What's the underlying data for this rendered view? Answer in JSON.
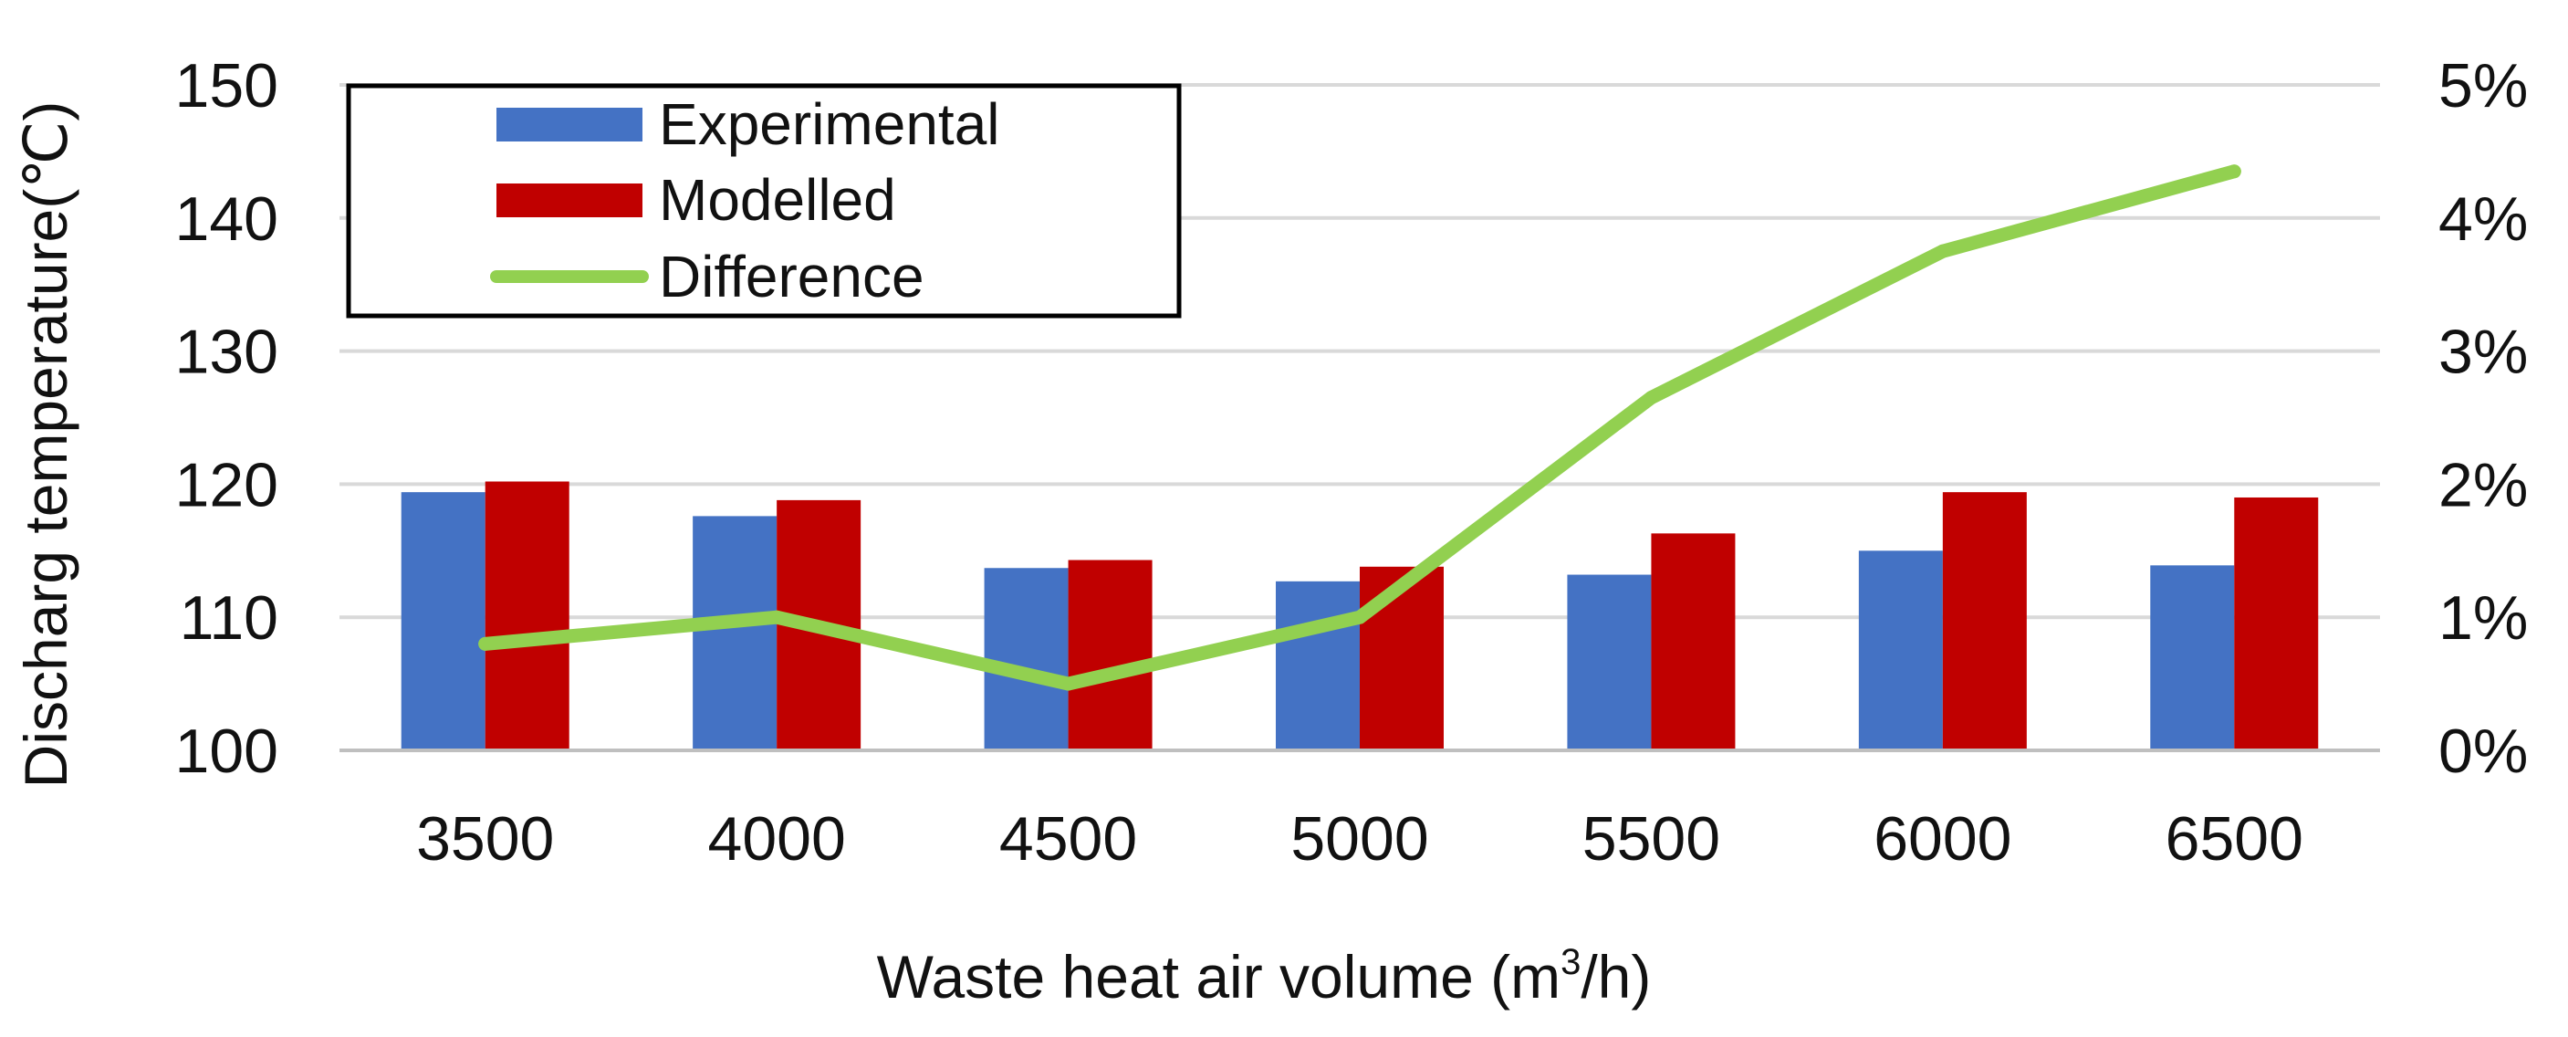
{
  "chart_data": {
    "type": "bar",
    "title": "",
    "xlabel": {
      "prefix": "Waste heat air volume (m",
      "superscript": "3",
      "suffix": "/h)"
    },
    "ylabel": "Discharg temperature(℃)",
    "y2label": "",
    "categories": [
      "3500",
      "4000",
      "4500",
      "5000",
      "5500",
      "6000",
      "6500"
    ],
    "ylim": [
      100,
      150
    ],
    "yticks": [
      100,
      110,
      120,
      130,
      140,
      150
    ],
    "y2lim": [
      0,
      0.05
    ],
    "y2ticks": [
      {
        "value": 0.0,
        "label": "0%"
      },
      {
        "value": 0.01,
        "label": "1%"
      },
      {
        "value": 0.02,
        "label": "2%"
      },
      {
        "value": 0.03,
        "label": "3%"
      },
      {
        "value": 0.04,
        "label": "4%"
      },
      {
        "value": 0.05,
        "label": "5%"
      }
    ],
    "grid": true,
    "legend_position": "top-left",
    "series": [
      {
        "name": "Experimental",
        "type": "bar",
        "axis": "left",
        "color": "#4472C4",
        "values": [
          119.4,
          117.6,
          113.7,
          112.7,
          113.2,
          115.0,
          113.9
        ]
      },
      {
        "name": "Modelled",
        "type": "bar",
        "axis": "left",
        "color": "#C00000",
        "values": [
          120.2,
          118.8,
          114.3,
          113.8,
          116.3,
          119.4,
          119.0
        ]
      },
      {
        "name": "Difference",
        "type": "line",
        "axis": "right",
        "color": "#92D050",
        "values": [
          0.008,
          0.01,
          0.005,
          0.01,
          0.0265,
          0.0375,
          0.0435
        ]
      }
    ]
  }
}
